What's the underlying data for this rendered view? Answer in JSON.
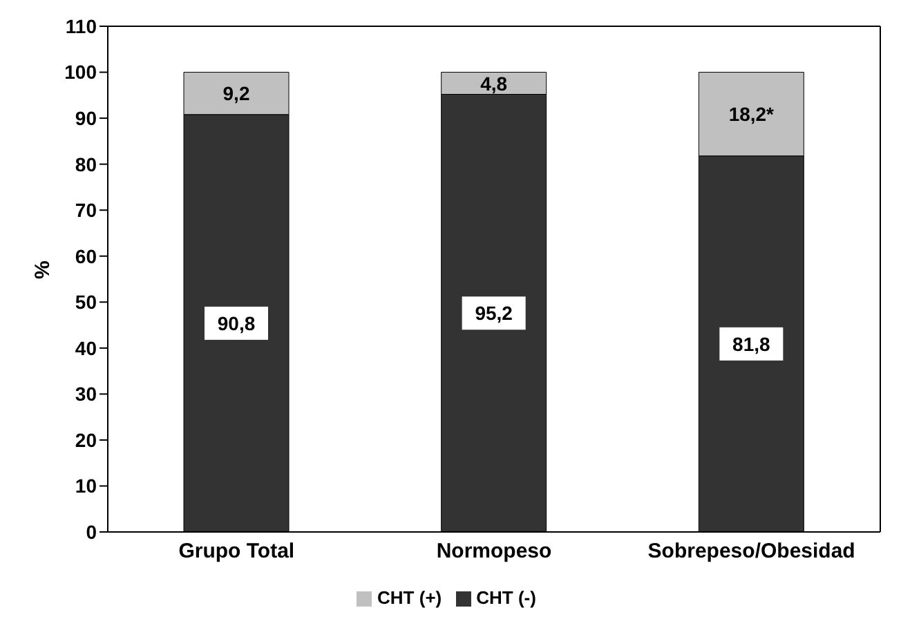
{
  "chart_data": {
    "type": "bar",
    "stacked": true,
    "ylabel": "%",
    "categories": [
      "Grupo Total",
      "Normopeso",
      "Sobrepeso/Obesidad"
    ],
    "series": [
      {
        "name": "CHT (-)",
        "color": "#333333",
        "values": [
          90.8,
          95.2,
          81.8
        ],
        "value_labels": [
          "90,8",
          "95,2",
          "81,8"
        ]
      },
      {
        "name": "CHT (+)",
        "color": "#c0c0c0",
        "values": [
          9.2,
          4.8,
          18.2
        ],
        "value_labels": [
          "9,2",
          "4,8",
          "18,2*"
        ]
      }
    ],
    "ylim": [
      0,
      110
    ],
    "yticks": [
      0,
      10,
      20,
      30,
      40,
      50,
      60,
      70,
      80,
      90,
      100,
      110
    ],
    "grid": false,
    "legend": "bottom"
  }
}
